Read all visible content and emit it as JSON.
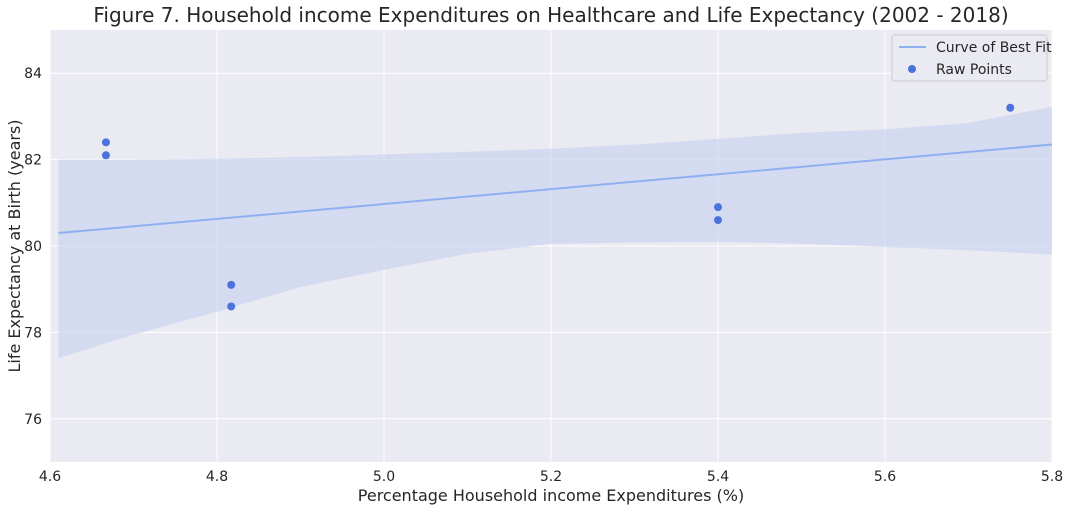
{
  "chart_data": {
    "type": "scatter",
    "title": "Figure 7. Household income Expenditures on Healthcare and Life Expectancy (2002 - 2018)",
    "xlabel": "Percentage Household income Expenditures (%)",
    "ylabel": "Life Expectancy at Birth (years)",
    "xlim": [
      4.6,
      5.8
    ],
    "ylim": [
      75.0,
      85.0
    ],
    "xticks": [
      "4.6",
      "4.8",
      "5.0",
      "5.2",
      "5.4",
      "5.6",
      "5.8"
    ],
    "yticks": [
      "76",
      "78",
      "80",
      "82",
      "84"
    ],
    "grid": true,
    "legend_position": "top-right",
    "series": [
      {
        "name": "Raw Points",
        "kind": "scatter",
        "color": "#4c72dd",
        "points": [
          {
            "x": 4.667,
            "y": 82.4
          },
          {
            "x": 4.667,
            "y": 82.1
          },
          {
            "x": 4.817,
            "y": 79.1
          },
          {
            "x": 4.817,
            "y": 78.6
          },
          {
            "x": 5.4,
            "y": 80.9
          },
          {
            "x": 5.4,
            "y": 80.6
          },
          {
            "x": 5.75,
            "y": 83.2
          }
        ]
      },
      {
        "name": "Curve of Best Fit",
        "kind": "line",
        "color": "#8fb0ef",
        "points": [
          {
            "x": 4.61,
            "y": 80.3
          },
          {
            "x": 5.8,
            "y": 82.35
          }
        ],
        "confidence_band": {
          "color": "#ccd6f0",
          "x": [
            4.61,
            4.7,
            4.8,
            4.9,
            5.0,
            5.1,
            5.2,
            5.3,
            5.4,
            5.5,
            5.6,
            5.7,
            5.8
          ],
          "upper": [
            82.0,
            82.0,
            82.02,
            82.06,
            82.12,
            82.18,
            82.25,
            82.35,
            82.48,
            82.62,
            82.7,
            82.85,
            83.22
          ],
          "lower": [
            77.4,
            77.95,
            78.48,
            79.05,
            79.45,
            79.82,
            80.05,
            80.08,
            80.1,
            80.05,
            79.98,
            79.9,
            79.8
          ]
        }
      }
    ],
    "legend": {
      "line_label": "Curve of Best Fit",
      "points_label": "Raw Points"
    }
  }
}
